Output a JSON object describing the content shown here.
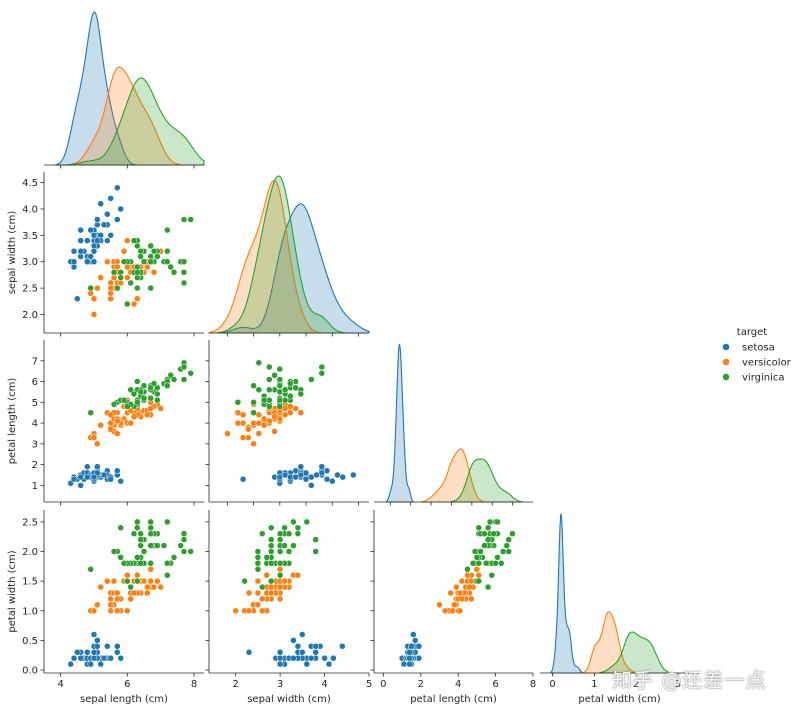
{
  "chart_data": {
    "type": "scatter",
    "variables": [
      "sepal length (cm)",
      "sepal width (cm)",
      "petal length (cm)",
      "petal width (cm)"
    ],
    "axis_limits": [
      [
        3.5,
        8.3
      ],
      [
        1.65,
        4.7
      ],
      [
        0.2,
        8.0
      ],
      [
        -0.05,
        2.7
      ]
    ],
    "ticks": [
      [
        "4",
        "6",
        "8"
      ],
      [
        "2.0",
        "2.5",
        "3.0",
        "3.5",
        "4.0",
        "4.5"
      ],
      [
        "1",
        "2",
        "3",
        "4",
        "5",
        "6",
        "7"
      ],
      [
        "0.0",
        "0.5",
        "1.0",
        "1.5",
        "2.0",
        "2.5"
      ]
    ],
    "tick_values": [
      [
        4,
        6,
        8
      ],
      [
        2.0,
        2.5,
        3.0,
        3.5,
        4.0,
        4.5
      ],
      [
        1,
        2,
        3,
        4,
        5,
        6,
        7
      ],
      [
        0.0,
        0.5,
        1.0,
        1.5,
        2.0,
        2.5
      ]
    ],
    "bottom_ticks": [
      [
        "4",
        "6",
        "8"
      ],
      [
        "2",
        "3",
        "4",
        "5"
      ],
      [
        "0",
        "2",
        "4",
        "6",
        "8"
      ],
      [
        "0",
        "1",
        "2",
        "3"
      ]
    ],
    "bottom_tick_values": [
      [
        4,
        6,
        8
      ],
      [
        2,
        3,
        4,
        5
      ],
      [
        0,
        2,
        4,
        6,
        8
      ],
      [
        0,
        1,
        2,
        3
      ]
    ],
    "bottom_limits": [
      [
        3.5,
        8.3
      ],
      [
        1.4,
        5.0
      ],
      [
        -0.5,
        8.0
      ],
      [
        -0.3,
        3.5
      ]
    ],
    "legend": {
      "title": "target",
      "placement": "right",
      "entries": [
        {
          "name": "setosa",
          "color": "#1f77b4"
        },
        {
          "name": "versicolor",
          "color": "#ff7f0e"
        },
        {
          "name": "virginica",
          "color": "#2ca02c"
        }
      ]
    },
    "series": [
      {
        "name": "setosa",
        "color": "#1f77b4",
        "values": [
          [
            5.1,
            3.5,
            1.4,
            0.2
          ],
          [
            4.9,
            3.0,
            1.4,
            0.2
          ],
          [
            4.7,
            3.2,
            1.3,
            0.2
          ],
          [
            4.6,
            3.1,
            1.5,
            0.2
          ],
          [
            5.0,
            3.6,
            1.4,
            0.2
          ],
          [
            5.4,
            3.9,
            1.7,
            0.4
          ],
          [
            4.6,
            3.4,
            1.4,
            0.3
          ],
          [
            5.0,
            3.4,
            1.5,
            0.2
          ],
          [
            4.4,
            2.9,
            1.4,
            0.2
          ],
          [
            4.9,
            3.1,
            1.5,
            0.1
          ],
          [
            5.4,
            3.7,
            1.5,
            0.2
          ],
          [
            4.8,
            3.4,
            1.6,
            0.2
          ],
          [
            4.8,
            3.0,
            1.4,
            0.1
          ],
          [
            4.3,
            3.0,
            1.1,
            0.1
          ],
          [
            5.8,
            4.0,
            1.2,
            0.2
          ],
          [
            5.7,
            4.4,
            1.5,
            0.4
          ],
          [
            5.4,
            3.9,
            1.3,
            0.4
          ],
          [
            5.1,
            3.5,
            1.4,
            0.3
          ],
          [
            5.7,
            3.8,
            1.7,
            0.3
          ],
          [
            5.1,
            3.8,
            1.5,
            0.3
          ],
          [
            5.4,
            3.4,
            1.7,
            0.2
          ],
          [
            5.1,
            3.7,
            1.5,
            0.4
          ],
          [
            4.6,
            3.6,
            1.0,
            0.2
          ],
          [
            5.1,
            3.3,
            1.7,
            0.5
          ],
          [
            4.8,
            3.4,
            1.9,
            0.2
          ],
          [
            5.0,
            3.0,
            1.6,
            0.2
          ],
          [
            5.0,
            3.4,
            1.6,
            0.4
          ],
          [
            5.2,
            3.5,
            1.5,
            0.2
          ],
          [
            5.2,
            3.4,
            1.4,
            0.2
          ],
          [
            4.7,
            3.2,
            1.6,
            0.2
          ],
          [
            4.8,
            3.1,
            1.6,
            0.2
          ],
          [
            5.4,
            3.4,
            1.5,
            0.4
          ],
          [
            5.2,
            4.1,
            1.5,
            0.1
          ],
          [
            5.5,
            4.2,
            1.4,
            0.2
          ],
          [
            4.9,
            3.1,
            1.5,
            0.2
          ],
          [
            5.0,
            3.2,
            1.2,
            0.2
          ],
          [
            5.5,
            3.5,
            1.3,
            0.2
          ],
          [
            4.9,
            3.6,
            1.4,
            0.1
          ],
          [
            4.4,
            3.0,
            1.3,
            0.2
          ],
          [
            5.1,
            3.4,
            1.5,
            0.2
          ],
          [
            5.0,
            3.5,
            1.3,
            0.3
          ],
          [
            4.5,
            2.3,
            1.3,
            0.3
          ],
          [
            4.4,
            3.2,
            1.3,
            0.2
          ],
          [
            5.0,
            3.5,
            1.6,
            0.6
          ],
          [
            5.1,
            3.8,
            1.9,
            0.4
          ],
          [
            4.8,
            3.0,
            1.4,
            0.3
          ],
          [
            5.1,
            3.8,
            1.6,
            0.2
          ],
          [
            4.6,
            3.2,
            1.4,
            0.2
          ],
          [
            5.3,
            3.7,
            1.5,
            0.2
          ],
          [
            5.0,
            3.3,
            1.4,
            0.2
          ]
        ]
      },
      {
        "name": "versicolor",
        "color": "#ff7f0e",
        "values": [
          [
            7.0,
            3.2,
            4.7,
            1.4
          ],
          [
            6.4,
            3.2,
            4.5,
            1.5
          ],
          [
            6.9,
            3.1,
            4.9,
            1.5
          ],
          [
            5.5,
            2.3,
            4.0,
            1.3
          ],
          [
            6.5,
            2.8,
            4.6,
            1.5
          ],
          [
            5.7,
            2.8,
            4.5,
            1.3
          ],
          [
            6.3,
            3.3,
            4.7,
            1.6
          ],
          [
            4.9,
            2.4,
            3.3,
            1.0
          ],
          [
            6.6,
            2.9,
            4.6,
            1.3
          ],
          [
            5.2,
            2.7,
            3.9,
            1.4
          ],
          [
            5.0,
            2.0,
            3.5,
            1.0
          ],
          [
            5.9,
            3.0,
            4.2,
            1.5
          ],
          [
            6.0,
            2.2,
            4.0,
            1.0
          ],
          [
            6.1,
            2.9,
            4.7,
            1.4
          ],
          [
            5.6,
            2.9,
            3.6,
            1.3
          ],
          [
            6.7,
            3.1,
            4.4,
            1.4
          ],
          [
            5.6,
            3.0,
            4.5,
            1.5
          ],
          [
            5.8,
            2.7,
            4.1,
            1.0
          ],
          [
            6.2,
            2.2,
            4.5,
            1.5
          ],
          [
            5.6,
            2.5,
            3.9,
            1.1
          ],
          [
            5.9,
            3.2,
            4.8,
            1.8
          ],
          [
            6.1,
            2.8,
            4.0,
            1.3
          ],
          [
            6.3,
            2.5,
            4.9,
            1.5
          ],
          [
            6.1,
            2.8,
            4.7,
            1.2
          ],
          [
            6.4,
            2.9,
            4.3,
            1.3
          ],
          [
            6.6,
            3.0,
            4.4,
            1.4
          ],
          [
            6.8,
            2.8,
            4.8,
            1.4
          ],
          [
            6.7,
            3.0,
            5.0,
            1.7
          ],
          [
            6.0,
            2.9,
            4.5,
            1.5
          ],
          [
            5.7,
            2.6,
            3.5,
            1.0
          ],
          [
            5.5,
            2.4,
            3.8,
            1.1
          ],
          [
            5.5,
            2.4,
            3.7,
            1.0
          ],
          [
            5.8,
            2.7,
            3.9,
            1.2
          ],
          [
            6.0,
            2.7,
            5.1,
            1.6
          ],
          [
            5.4,
            3.0,
            4.5,
            1.5
          ],
          [
            6.0,
            3.4,
            4.5,
            1.6
          ],
          [
            6.7,
            3.1,
            4.7,
            1.5
          ],
          [
            6.3,
            2.3,
            4.4,
            1.3
          ],
          [
            5.6,
            3.0,
            4.1,
            1.3
          ],
          [
            5.5,
            2.5,
            4.0,
            1.3
          ],
          [
            5.5,
            2.6,
            4.4,
            1.2
          ],
          [
            6.1,
            3.0,
            4.6,
            1.4
          ],
          [
            5.8,
            2.6,
            4.0,
            1.2
          ],
          [
            5.0,
            2.3,
            3.3,
            1.0
          ],
          [
            5.6,
            2.7,
            4.2,
            1.3
          ],
          [
            5.7,
            3.0,
            4.2,
            1.2
          ],
          [
            5.7,
            2.9,
            4.2,
            1.3
          ],
          [
            6.2,
            2.9,
            4.3,
            1.3
          ],
          [
            5.1,
            2.5,
            3.0,
            1.1
          ],
          [
            5.7,
            2.8,
            4.1,
            1.3
          ]
        ]
      },
      {
        "name": "virginica",
        "color": "#2ca02c",
        "values": [
          [
            6.3,
            3.3,
            6.0,
            2.5
          ],
          [
            5.8,
            2.7,
            5.1,
            1.9
          ],
          [
            7.1,
            3.0,
            5.9,
            2.1
          ],
          [
            6.3,
            2.9,
            5.6,
            1.8
          ],
          [
            6.5,
            3.0,
            5.8,
            2.2
          ],
          [
            7.6,
            3.0,
            6.6,
            2.1
          ],
          [
            4.9,
            2.5,
            4.5,
            1.7
          ],
          [
            7.3,
            2.9,
            6.3,
            1.8
          ],
          [
            6.7,
            2.5,
            5.8,
            1.8
          ],
          [
            7.2,
            3.6,
            6.1,
            2.5
          ],
          [
            6.5,
            3.2,
            5.1,
            2.0
          ],
          [
            6.4,
            2.7,
            5.3,
            1.9
          ],
          [
            6.8,
            3.0,
            5.5,
            2.1
          ],
          [
            5.7,
            2.5,
            5.0,
            2.0
          ],
          [
            5.8,
            2.8,
            5.1,
            2.4
          ],
          [
            6.4,
            3.2,
            5.3,
            2.3
          ],
          [
            6.5,
            3.0,
            5.5,
            1.8
          ],
          [
            7.7,
            3.8,
            6.7,
            2.2
          ],
          [
            7.7,
            2.6,
            6.9,
            2.3
          ],
          [
            6.0,
            2.2,
            5.0,
            1.5
          ],
          [
            6.9,
            3.2,
            5.7,
            2.3
          ],
          [
            5.6,
            2.8,
            4.9,
            2.0
          ],
          [
            7.7,
            2.8,
            6.7,
            2.0
          ],
          [
            6.3,
            2.7,
            4.9,
            1.8
          ],
          [
            6.7,
            3.3,
            5.7,
            2.1
          ],
          [
            7.2,
            3.2,
            6.0,
            1.8
          ],
          [
            6.2,
            2.8,
            4.8,
            1.8
          ],
          [
            6.1,
            3.0,
            4.9,
            1.8
          ],
          [
            6.4,
            2.8,
            5.6,
            2.1
          ],
          [
            7.2,
            3.0,
            5.8,
            1.6
          ],
          [
            7.4,
            2.8,
            6.1,
            1.9
          ],
          [
            7.9,
            3.8,
            6.4,
            2.0
          ],
          [
            6.4,
            2.8,
            5.6,
            2.2
          ],
          [
            6.3,
            2.8,
            5.1,
            1.5
          ],
          [
            6.1,
            2.6,
            5.6,
            1.4
          ],
          [
            7.7,
            3.0,
            6.1,
            2.3
          ],
          [
            6.3,
            3.4,
            5.6,
            2.4
          ],
          [
            6.4,
            3.1,
            5.5,
            1.8
          ],
          [
            6.0,
            3.0,
            4.8,
            1.8
          ],
          [
            6.9,
            3.1,
            5.4,
            2.1
          ],
          [
            6.7,
            3.1,
            5.6,
            2.4
          ],
          [
            6.9,
            3.1,
            5.1,
            2.3
          ],
          [
            5.8,
            2.7,
            5.1,
            1.9
          ],
          [
            6.8,
            3.2,
            5.9,
            2.3
          ],
          [
            6.7,
            3.3,
            5.7,
            2.5
          ],
          [
            6.7,
            3.0,
            5.2,
            2.3
          ],
          [
            6.3,
            2.5,
            5.0,
            1.9
          ],
          [
            6.5,
            3.0,
            5.2,
            2.0
          ],
          [
            6.2,
            3.4,
            5.4,
            2.3
          ],
          [
            5.9,
            3.0,
            5.1,
            1.8
          ]
        ]
      }
    ]
  },
  "watermark": "知乎 @还差一点"
}
